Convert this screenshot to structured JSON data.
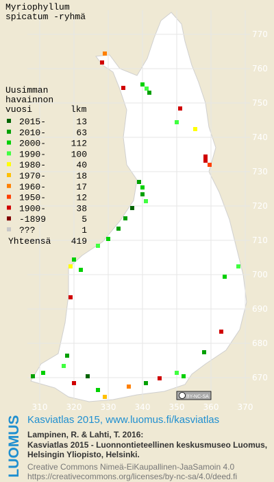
{
  "title": [
    "Myriophyllum",
    "spicatum -ryhmä"
  ],
  "legend": {
    "heading": [
      "Uusimman",
      "havainnon",
      "vuosi"
    ],
    "count_heading": "lkm",
    "rows": [
      {
        "label": "2015-",
        "count": 13,
        "color": "#006400"
      },
      {
        "label": "2010-",
        "count": 63,
        "color": "#00a000"
      },
      {
        "label": "2000-",
        "count": 112,
        "color": "#00d000"
      },
      {
        "label": "1990-",
        "count": 100,
        "color": "#40ff40"
      },
      {
        "label": "1980-",
        "count": 40,
        "color": "#ffff00"
      },
      {
        "label": "1970-",
        "count": 18,
        "color": "#ffc000"
      },
      {
        "label": "1960-",
        "count": 17,
        "color": "#ff8000"
      },
      {
        "label": "1950-",
        "count": 12,
        "color": "#ff4000"
      },
      {
        "label": "1900-",
        "count": 38,
        "color": "#d00000"
      },
      {
        "label": "-1899",
        "count": 5,
        "color": "#800000"
      },
      {
        "label": "???",
        "count": 1,
        "color": "#c8c8c8"
      }
    ],
    "total_label": "Yhteensä",
    "total": 419
  },
  "grid": {
    "x_labels": [
      310,
      320,
      330,
      340,
      350,
      360,
      370
    ],
    "y_labels": [
      770,
      760,
      750,
      740,
      730,
      720,
      710,
      700,
      690,
      680,
      670
    ]
  },
  "license_badge": "BY-NC-SA",
  "footer": {
    "logo": "LUOMUS",
    "headline": "Kasviatlas 2015, www.luomus.fi/kasviatlas",
    "citation": [
      "Lampinen, R. & Lahti, T. 2016:",
      "Kasviatlas 2015 - Luonnontieteellinen keskusmuseo Luomus,",
      "Helsingin Yliopisto, Helsinki."
    ],
    "license": [
      "Creative Commons Nimeä-EiKaupallinen-JaaSamoin 4.0",
      "https://creativecommons.org/licenses/by-nc-sa/4.0/deed.fi"
    ]
  }
}
